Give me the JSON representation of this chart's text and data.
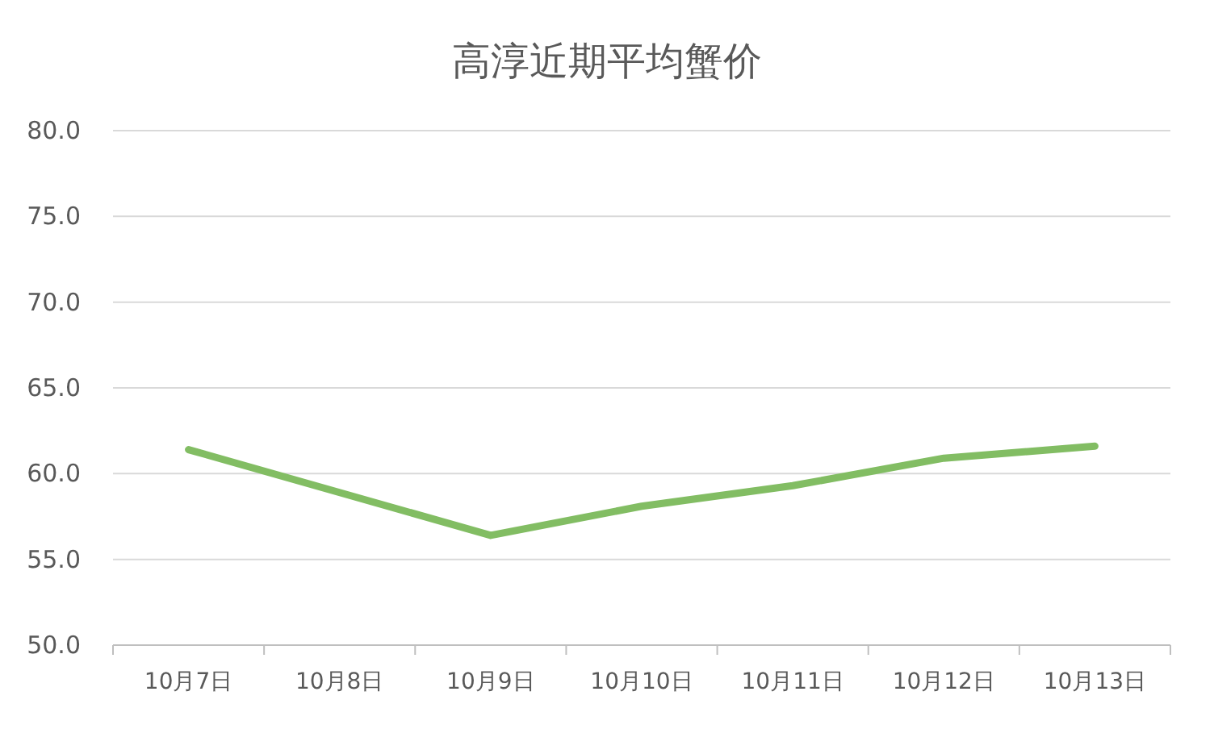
{
  "chart_data": {
    "type": "line",
    "title": "高淳近期平均蟹价",
    "categories": [
      "10月7日",
      "10月8日",
      "10月9日",
      "10月10日",
      "10月11日",
      "10月12日",
      "10月13日"
    ],
    "values": [
      61.4,
      58.9,
      56.4,
      58.1,
      59.3,
      60.9,
      61.6
    ],
    "color": "#82bd63",
    "ylim": [
      50,
      80
    ],
    "yticks": [
      {
        "value": 50,
        "label": "50.0"
      },
      {
        "value": 55,
        "label": "55.0"
      },
      {
        "value": 60,
        "label": "60.0"
      },
      {
        "value": 65,
        "label": "65.0"
      },
      {
        "value": 70,
        "label": "70.0"
      },
      {
        "value": 75,
        "label": "75.0"
      },
      {
        "value": 80,
        "label": "80.0"
      }
    ],
    "grid": "y",
    "marker": "none",
    "line_style": "solid"
  }
}
